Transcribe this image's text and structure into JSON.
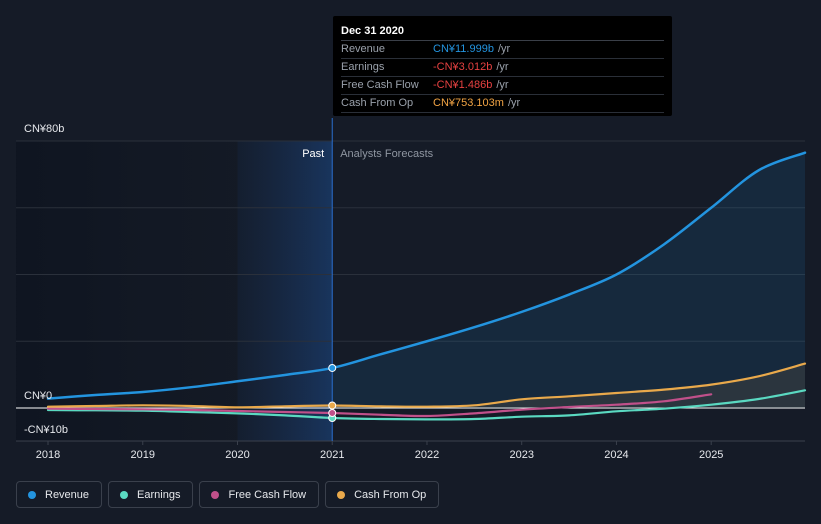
{
  "tooltip": {
    "title": "Dec 31 2020",
    "rows": [
      {
        "label": "Revenue",
        "value": "CN¥11.999b",
        "unit": "/yr",
        "color": "#2394df"
      },
      {
        "label": "Earnings",
        "value": "-CN¥3.012b",
        "unit": "/yr",
        "color": "#e64141"
      },
      {
        "label": "Free Cash Flow",
        "value": "-CN¥1.486b",
        "unit": "/yr",
        "color": "#e64141"
      },
      {
        "label": "Cash From Op",
        "value": "CN¥753.103m",
        "unit": "/yr",
        "color": "#f2a444"
      }
    ]
  },
  "regions": {
    "past": "Past",
    "forecast": "Analysts Forecasts"
  },
  "legend": [
    {
      "label": "Revenue",
      "color": "#2394df"
    },
    {
      "label": "Earnings",
      "color": "#5ad9c1"
    },
    {
      "label": "Free Cash Flow",
      "color": "#c0508a"
    },
    {
      "label": "Cash From Op",
      "color": "#e9a94b"
    }
  ],
  "chart_data": {
    "type": "line",
    "title": "",
    "xlabel": "",
    "ylabel": "",
    "xlim": [
      2018,
      2025.99
    ],
    "ylim": [
      -10,
      80
    ],
    "y_tick_labels": [
      {
        "value": 80,
        "label": "CN¥80b"
      },
      {
        "value": 0,
        "label": "CN¥0"
      },
      {
        "value": -10,
        "label": "-CN¥10b"
      }
    ],
    "x_ticks": [
      2018,
      2019,
      2020,
      2021,
      2022,
      2023,
      2024,
      2025
    ],
    "x_tick_labels": [
      "2018",
      "2019",
      "2020",
      "2021",
      "2022",
      "2023",
      "2024",
      "2025"
    ],
    "past_boundary": 2021,
    "highlight_start": 2020,
    "series": [
      {
        "name": "Revenue",
        "color": "#2394df",
        "x": [
          2018,
          2018.5,
          2019,
          2019.5,
          2020,
          2020.5,
          2021,
          2021.5,
          2022,
          2022.5,
          2023,
          2023.5,
          2024,
          2024.5,
          2025,
          2025.5,
          2025.99
        ],
        "y": [
          2.8,
          3.9,
          4.8,
          6.2,
          8.0,
          9.9,
          12.0,
          16.0,
          20.0,
          24.2,
          28.8,
          34.0,
          40.0,
          49.0,
          60.0,
          71.2,
          76.5
        ]
      },
      {
        "name": "Earnings",
        "color": "#5ad9c1",
        "x": [
          2018,
          2018.5,
          2019,
          2019.5,
          2020,
          2020.5,
          2021,
          2021.5,
          2022,
          2022.5,
          2023,
          2023.5,
          2024,
          2024.5,
          2025,
          2025.5,
          2025.99
        ],
        "y": [
          -0.6,
          -0.7,
          -0.8,
          -1.2,
          -1.6,
          -2.2,
          -3.0,
          -3.3,
          -3.4,
          -3.3,
          -2.6,
          -2.2,
          -1.0,
          -0.2,
          1.0,
          2.7,
          5.3
        ]
      },
      {
        "name": "Free Cash Flow",
        "color": "#c0508a",
        "x": [
          2018,
          2018.5,
          2019,
          2019.5,
          2020,
          2020.5,
          2021,
          2021.5,
          2022,
          2022.5,
          2023,
          2023.5,
          2024,
          2024.5,
          2025
        ],
        "y": [
          -0.2,
          -0.3,
          -0.4,
          -0.6,
          -0.9,
          -1.2,
          -1.5,
          -2.0,
          -2.4,
          -1.6,
          -0.5,
          0.3,
          1.0,
          2.0,
          4.1
        ]
      },
      {
        "name": "Cash From Op",
        "color": "#e9a94b",
        "x": [
          2018,
          2018.5,
          2019,
          2019.5,
          2020,
          2020.5,
          2021,
          2021.5,
          2022,
          2022.5,
          2023,
          2023.5,
          2024,
          2024.5,
          2025,
          2025.5,
          2025.99
        ],
        "y": [
          0.4,
          0.6,
          0.8,
          0.6,
          0.2,
          0.5,
          0.75,
          0.5,
          0.4,
          0.8,
          2.6,
          3.5,
          4.5,
          5.5,
          7.0,
          9.5,
          13.3
        ]
      }
    ],
    "markers_at": 2021
  }
}
